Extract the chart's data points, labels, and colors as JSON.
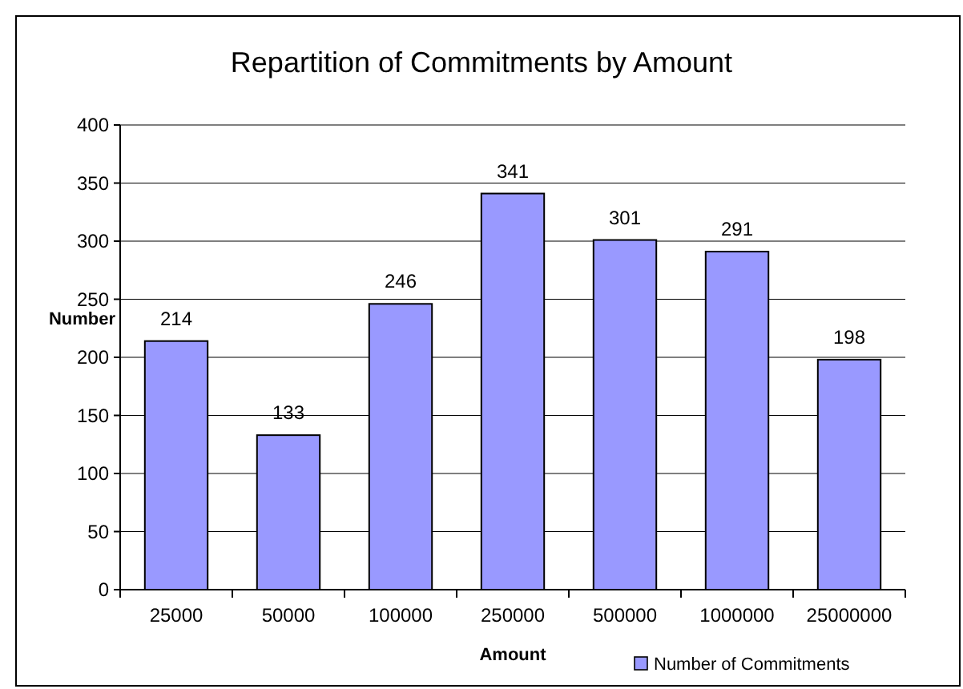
{
  "chart_data": {
    "type": "bar",
    "title": "Repartition of Commitments by Amount",
    "xlabel": "Amount",
    "ylabel": "Number",
    "categories": [
      "25000",
      "50000",
      "100000",
      "250000",
      "500000",
      "1000000",
      "25000000"
    ],
    "series": [
      {
        "name": "Number of Commitments",
        "color": "#9999ff",
        "values": [
          214,
          133,
          246,
          341,
          301,
          291,
          198
        ]
      }
    ],
    "ylim": [
      0,
      400
    ],
    "yticks": [
      0,
      50,
      100,
      150,
      200,
      250,
      300,
      350,
      400
    ],
    "grid": "y",
    "data_labels": true,
    "legend": "bottom right"
  }
}
